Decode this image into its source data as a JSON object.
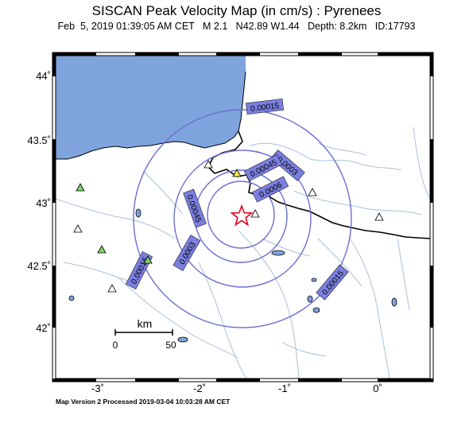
{
  "header": {
    "title": "SISCAN Peak Velocity Map (in cm/s) : Pyrenees",
    "subtitle": "Feb  5, 2019 01:39:05 AM CET   M 2.1   N42.89 W1.44   Depth: 8.2km   ID:17793"
  },
  "footer": {
    "text": "Map Version 2 Processed 2019-03-04 10:03:28 AM CET"
  },
  "axes": {
    "lat_ticks": [
      "44˚",
      "43.5˚",
      "43˚",
      "42.5˚",
      "42˚"
    ],
    "lon_ticks": [
      "-3˚",
      "-2˚",
      "-1˚",
      "0˚"
    ]
  },
  "scalebar": {
    "unit": "km",
    "min": "0",
    "max": "50"
  },
  "contours": [
    {
      "label": "0.00015",
      "color": "#6a6fd0"
    },
    {
      "label": "0.0003",
      "color": "#6a6fd0"
    },
    {
      "label": "0.00045",
      "color": "#6a6fd0"
    },
    {
      "label": "0.0006",
      "color": "#6a6fd0"
    },
    {
      "label": "0.00045",
      "color": "#6a6fd0"
    },
    {
      "label": "0.0003",
      "color": "#6a6fd0"
    },
    {
      "label": "0.00015",
      "color": "#6a6fd0"
    },
    {
      "label": "0.00015",
      "color": "#6a6fd0"
    }
  ],
  "colors": {
    "sea": "#7fa3dd",
    "river": "#a9c0dc",
    "border": "#000000",
    "contour_label_bg": "#7b7fe0",
    "epicenter": "#e2001a",
    "station_green": "#7fd36a",
    "station_yellow": "#f1e64a",
    "station_white": "#ffffff"
  },
  "epicenter": {
    "icon": "star-icon"
  },
  "stations": [
    {
      "type": "green"
    },
    {
      "type": "green"
    },
    {
      "type": "green"
    },
    {
      "type": "yellow"
    },
    {
      "type": "white"
    },
    {
      "type": "white"
    },
    {
      "type": "white"
    },
    {
      "type": "white"
    },
    {
      "type": "white"
    },
    {
      "type": "white"
    }
  ]
}
